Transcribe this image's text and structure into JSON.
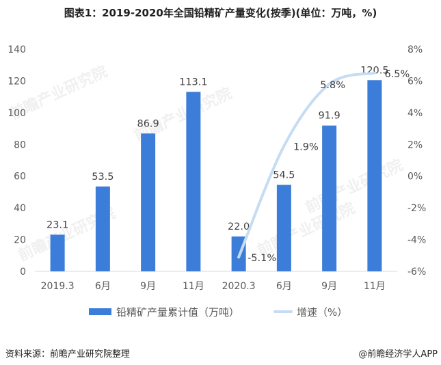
{
  "chart_data": {
    "type": "bar",
    "title": "图表1：2019-2020年全国铅精矿产量变化(按季)(单位：万吨，%)",
    "categories": [
      "2019.3",
      "6月",
      "9月",
      "11月",
      "2020.3",
      "6月",
      "9月",
      "11月"
    ],
    "series": [
      {
        "name": "铅精矿产量累计值（万吨）",
        "type": "bar",
        "secondary_axis": false,
        "values": [
          23.1,
          53.5,
          86.9,
          113.1,
          22.0,
          54.5,
          91.9,
          120.5
        ],
        "color": "#3b7dd8"
      },
      {
        "name": "增速（%）",
        "type": "line",
        "secondary_axis": true,
        "smooth": true,
        "values": [
          null,
          null,
          null,
          null,
          -5.1,
          1.9,
          5.8,
          6.5
        ],
        "value_suffix": "%",
        "color": "#c6dcf2"
      }
    ],
    "xlabel": "",
    "ylabel": "",
    "y2label": "",
    "ylim": [
      0,
      140
    ],
    "y_ticks": [
      0,
      20,
      40,
      60,
      80,
      100,
      120,
      140
    ],
    "y2lim": [
      -6,
      8
    ],
    "y2_tick_labels": [
      "-6%",
      "-4%",
      "-2%",
      "0%",
      "2%",
      "4%",
      "6%",
      "8%"
    ],
    "grid": false,
    "legend": "bottom"
  },
  "watermark": "前瞻产业研究院",
  "footer": {
    "source": "资料来源：前瞻产业研究院整理",
    "brand": "@前瞻经济学人APP"
  }
}
